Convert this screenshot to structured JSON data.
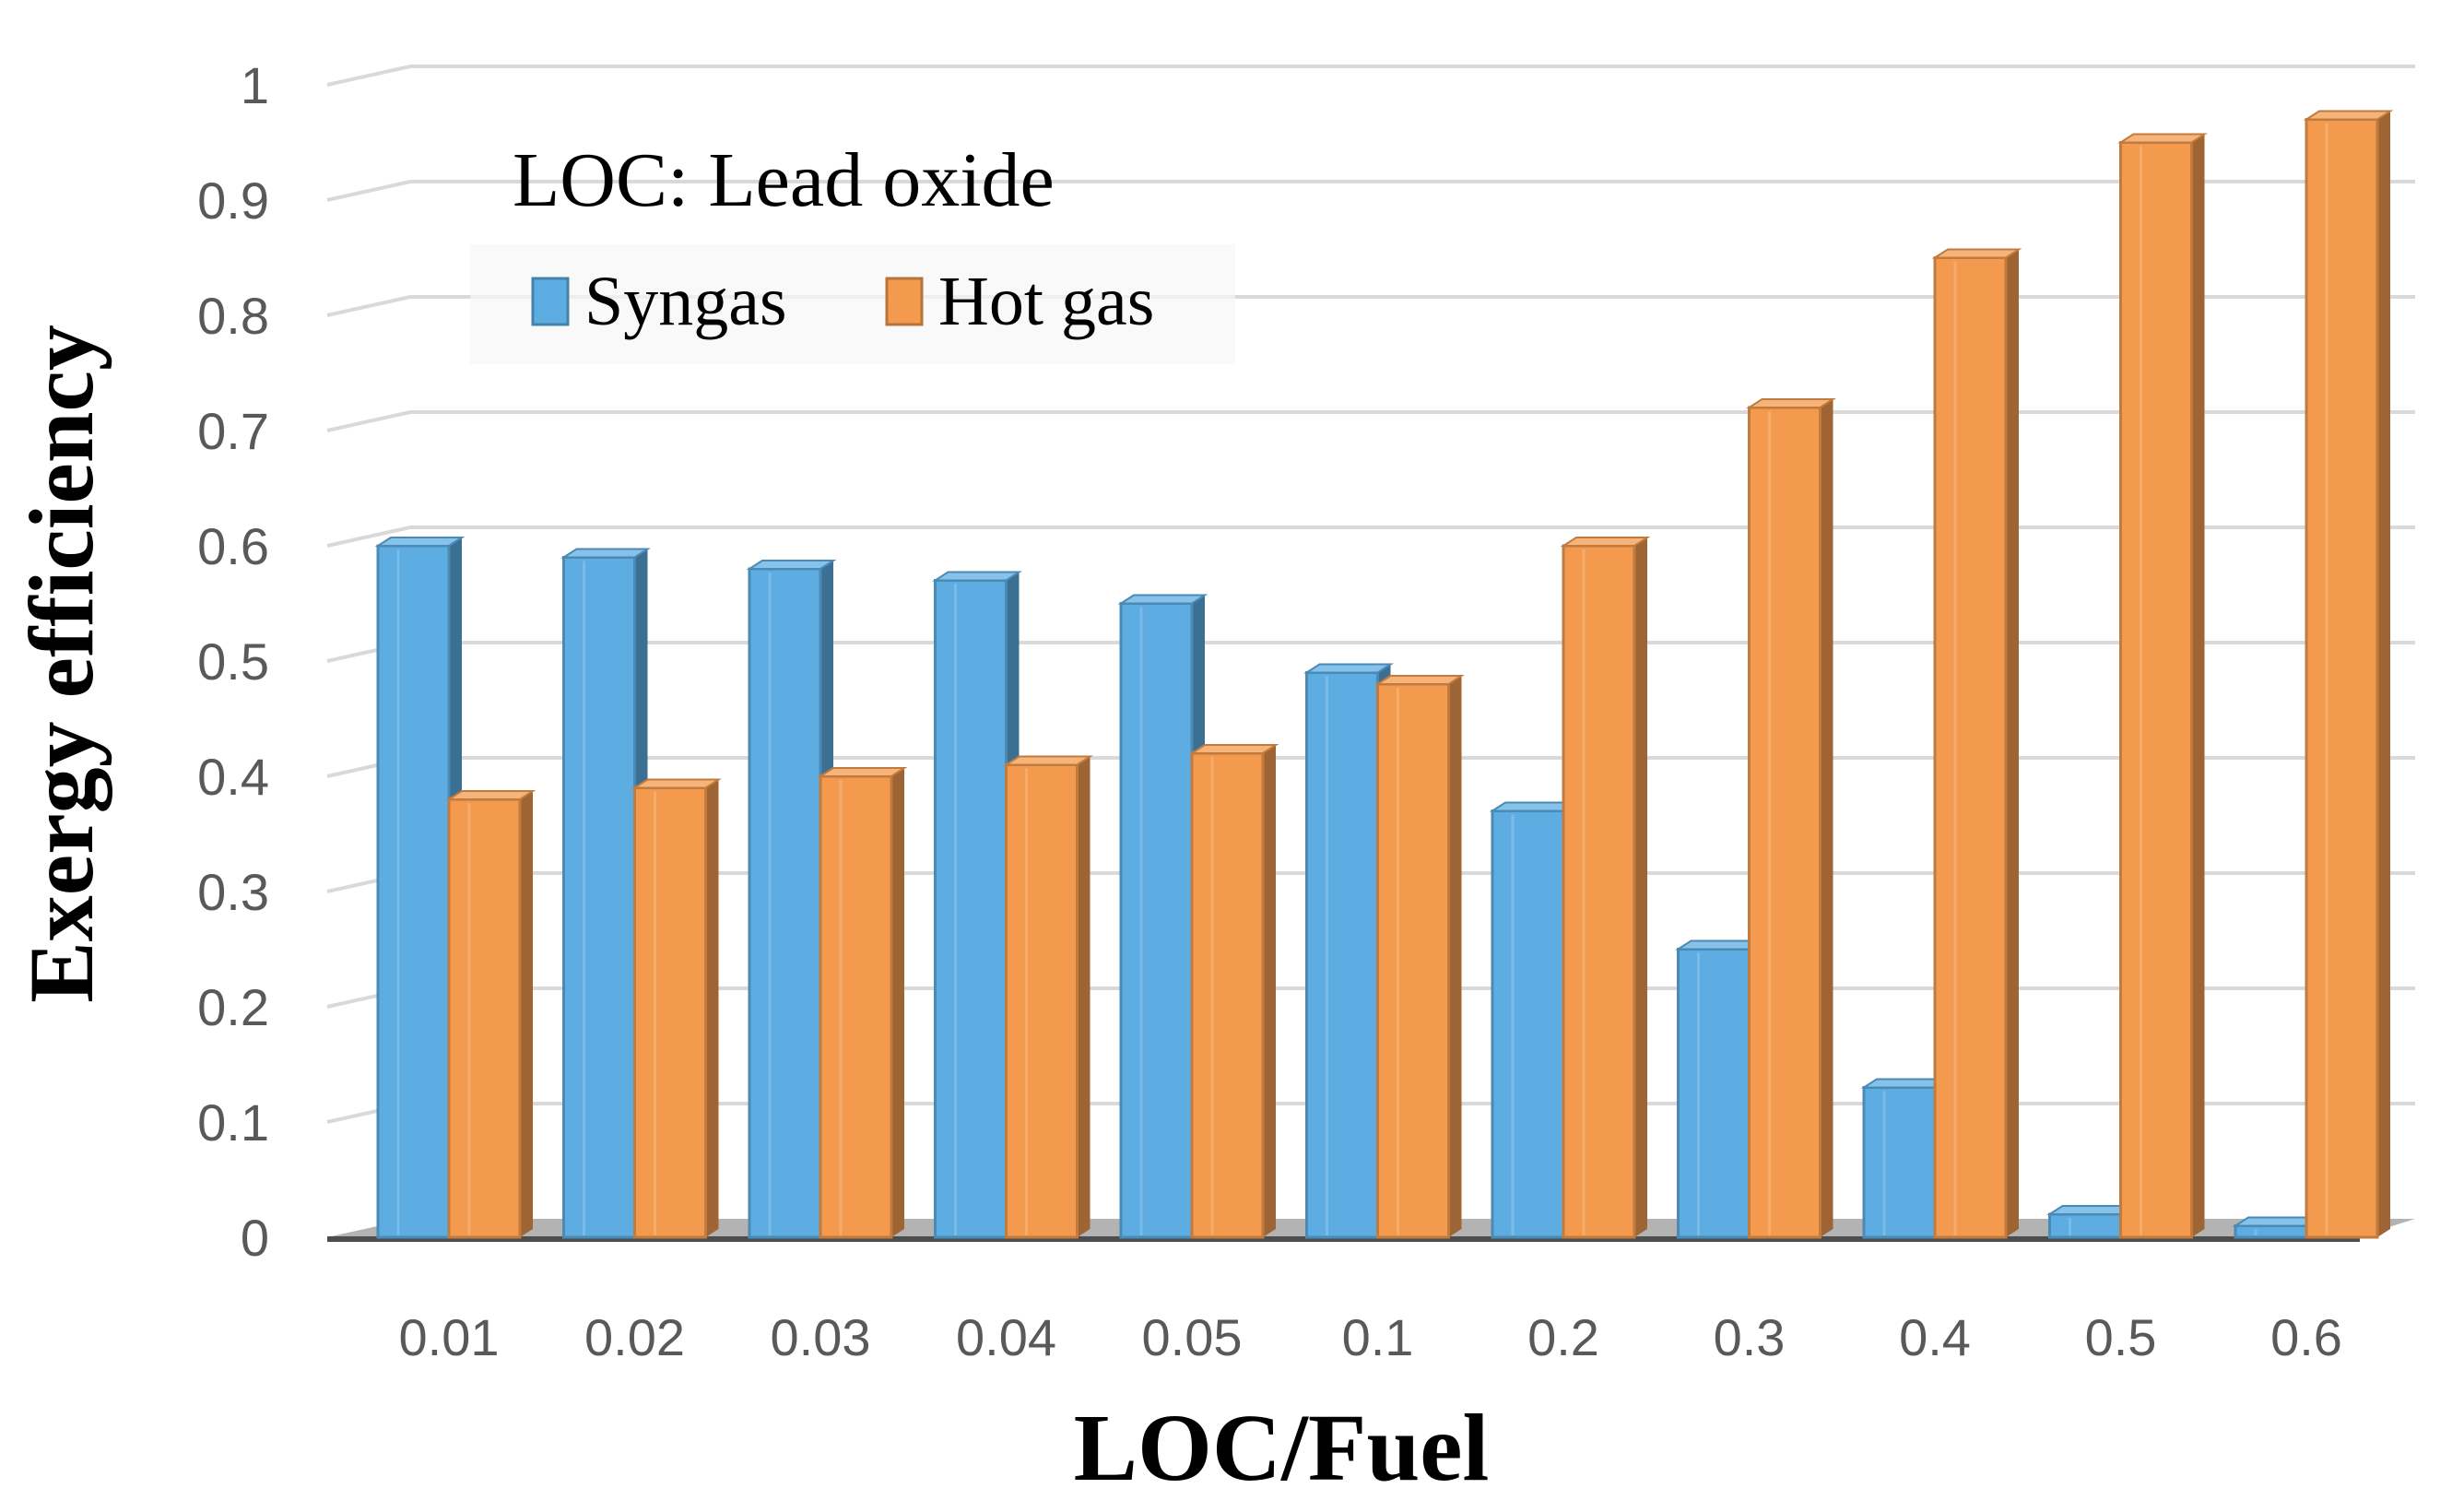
{
  "chart_data": {
    "type": "bar",
    "title": "",
    "annotation": "LOC: Lead oxide",
    "xlabel": "LOC/Fuel",
    "ylabel": "Exergy efficiency",
    "categories": [
      "0.01",
      "0.02",
      "0.03",
      "0.04",
      "0.05",
      "0.1",
      "0.2",
      "0.3",
      "0.4",
      "0.5",
      "0.6"
    ],
    "yticks": [
      "0",
      "0.1",
      "0.2",
      "0.3",
      "0.4",
      "0.5",
      "0.6",
      "0.7",
      "0.8",
      "0.9",
      "1"
    ],
    "ylim": [
      0,
      1
    ],
    "grid": true,
    "legend_position": "top-left",
    "series": [
      {
        "name": "Syngas",
        "color": "#5DADE2",
        "values": [
          0.6,
          0.59,
          0.58,
          0.57,
          0.55,
          0.49,
          0.37,
          0.25,
          0.13,
          0.02,
          0.01
        ]
      },
      {
        "name": "Hot gas",
        "color": "#F39A4E",
        "values": [
          0.38,
          0.39,
          0.4,
          0.41,
          0.42,
          0.48,
          0.6,
          0.72,
          0.85,
          0.95,
          0.97
        ]
      }
    ]
  }
}
